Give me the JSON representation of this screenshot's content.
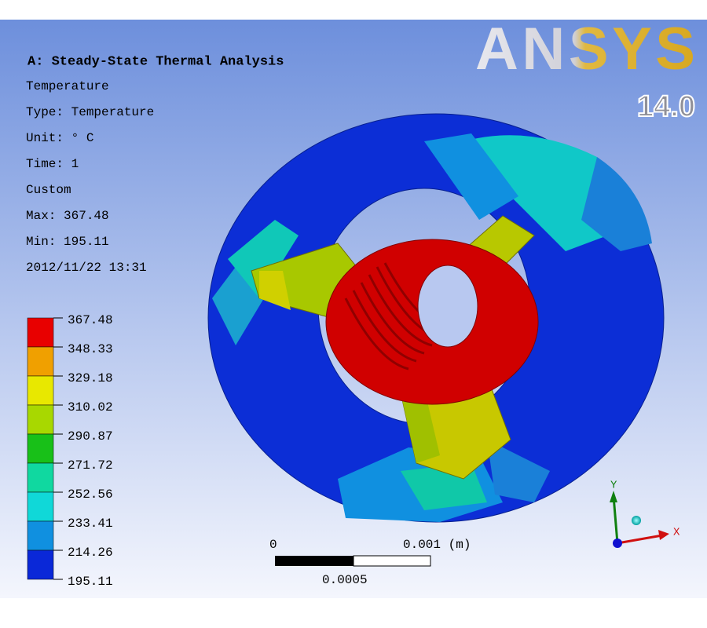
{
  "header": {
    "title": "A: Steady-State Thermal  Analysis",
    "lines": [
      "Temperature",
      "Type: Temperature",
      "Unit: ° C",
      "Time: 1",
      "Custom",
      "Max: 367.48",
      "Min: 195.11",
      "2012/11/22 13:31"
    ]
  },
  "logo": {
    "name": "ANSYS",
    "version": "14.0"
  },
  "legend": {
    "labels": [
      "367.48",
      "348.33",
      "329.18",
      "310.02",
      "290.87",
      "271.72",
      "252.56",
      "233.41",
      "214.26",
      "195.11"
    ],
    "colors": [
      "#e80000",
      "#f0a000",
      "#e8e800",
      "#a8d800",
      "#18c018",
      "#10d8a0",
      "#10d8d8",
      "#1090e0",
      "#0a28d8"
    ]
  },
  "scale_bar": {
    "start": "0",
    "end": "0.001 (m)",
    "mid": "0.0005"
  },
  "triad": {
    "y": "Y",
    "x": "X"
  }
}
